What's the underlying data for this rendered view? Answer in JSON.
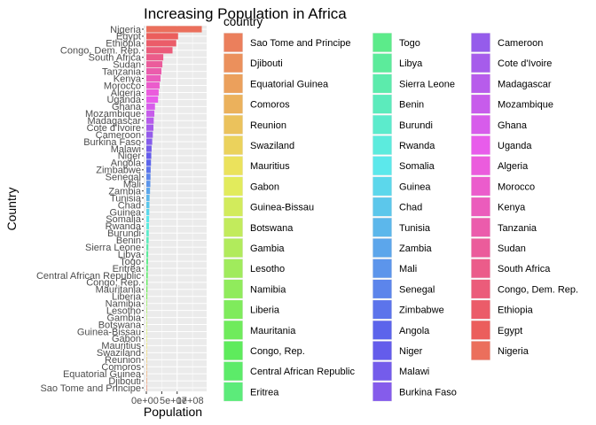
{
  "chart_data": {
    "type": "bar",
    "orientation": "horizontal",
    "title": "Increasing Population in Africa",
    "xlabel": "Population",
    "ylabel": "Country",
    "xlim": [
      0,
      190000000
    ],
    "xticks": [
      0,
      100000000
    ],
    "xtick_labels": [
      "0e+00",
      "1e+08"
    ],
    "minor_tick_label_fragment": "5e+07",
    "grid": true,
    "legend": {
      "title": "country",
      "placement": "right",
      "columns": 3
    },
    "categories": [
      "Nigeria",
      "Egypt",
      "Ethiopia",
      "Congo, Dem. Rep.",
      "South Africa",
      "Sudan",
      "Tanzania",
      "Kenya",
      "Morocco",
      "Algeria",
      "Uganda",
      "Ghana",
      "Mozambique",
      "Madagascar",
      "Cote d'Ivoire",
      "Cameroon",
      "Burkina Faso",
      "Malawi",
      "Niger",
      "Angola",
      "Zimbabwe",
      "Senegal",
      "Mali",
      "Zambia",
      "Tunisia",
      "Chad",
      "Guinea",
      "Somalia",
      "Rwanda",
      "Burundi",
      "Benin",
      "Sierra Leone",
      "Libya",
      "Togo",
      "Eritrea",
      "Central African Republic",
      "Congo, Rep.",
      "Mauritania",
      "Liberia",
      "Namibia",
      "Lesotho",
      "Gambia",
      "Botswana",
      "Guinea-Bissau",
      "Gabon",
      "Mauritius",
      "Swaziland",
      "Reunion",
      "Comoros",
      "Equatorial Guinea",
      "Djibouti",
      "Sao Tome and Principe"
    ],
    "values": [
      180000000,
      103000000,
      97000000,
      85000000,
      55000000,
      52000000,
      49000000,
      46000000,
      43000000,
      40000000,
      38000000,
      28000000,
      26000000,
      24000000,
      23000000,
      21000000,
      19000000,
      17000000,
      16000000,
      15000000,
      14000000,
      13500000,
      13000000,
      12000000,
      10500000,
      10000000,
      9500000,
      9000000,
      8500000,
      8000000,
      7500000,
      6500000,
      6000000,
      5500000,
      5000000,
      4500000,
      4000000,
      3600000,
      3200000,
      2200000,
      2000000,
      1500000,
      1600000,
      1400000,
      1400000,
      1300000,
      1100000,
      800000,
      700000,
      600000,
      500000,
      200000
    ]
  },
  "colors": {
    "panel_bg": "#ebebeb",
    "grid": "#ffffff",
    "legend_order": [
      "Sao Tome and Principe",
      "Djibouti",
      "Equatorial Guinea",
      "Comoros",
      "Reunion",
      "Swaziland",
      "Mauritius",
      "Gabon",
      "Guinea-Bissau",
      "Botswana",
      "Gambia",
      "Lesotho",
      "Namibia",
      "Liberia",
      "Mauritania",
      "Congo, Rep.",
      "Central African Republic",
      "Eritrea",
      "Togo",
      "Libya",
      "Sierra Leone",
      "Benin",
      "Burundi",
      "Rwanda",
      "Somalia",
      "Guinea",
      "Chad",
      "Tunisia",
      "Zambia",
      "Mali",
      "Senegal",
      "Zimbabwe",
      "Angola",
      "Niger",
      "Malawi",
      "Burkina Faso",
      "Cameroon",
      "Cote d'Ivoire",
      "Madagascar",
      "Mozambique",
      "Ghana",
      "Uganda",
      "Algeria",
      "Morocco",
      "Kenya",
      "Tanzania",
      "Sudan",
      "South Africa",
      "Congo, Dem. Rep.",
      "Ethiopia",
      "Egypt",
      "Nigeria"
    ]
  }
}
